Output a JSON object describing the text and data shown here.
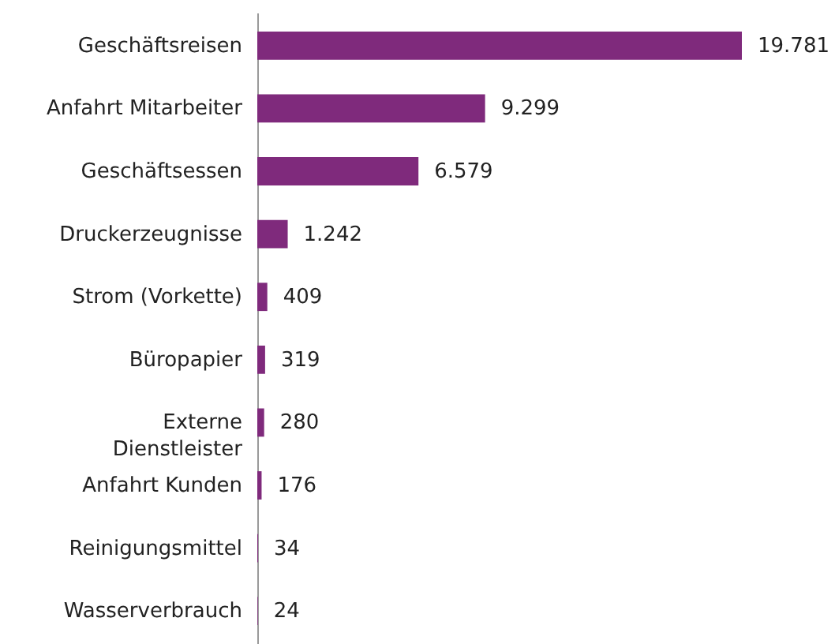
{
  "chart_data": {
    "type": "bar",
    "orientation": "horizontal",
    "categories": [
      "Geschäftsreisen",
      "Anfahrt Mitarbeiter",
      "Geschäftsessen",
      "Druckerzeugnisse",
      "Strom (Vorkette)",
      "Büropapier",
      "Externe\nDienstleister",
      "Anfahrt Kunden",
      "Reinigungsmittel",
      "Wasserverbrauch"
    ],
    "values": [
      19781,
      9299,
      6579,
      1242,
      409,
      319,
      280,
      176,
      34,
      24
    ],
    "value_labels": [
      "19.781",
      "9.299",
      "6.579",
      "1.242",
      "409",
      "319",
      "280",
      "176",
      "34",
      "24"
    ],
    "color": "#7f2a7c",
    "tick_labels": "y"
  }
}
